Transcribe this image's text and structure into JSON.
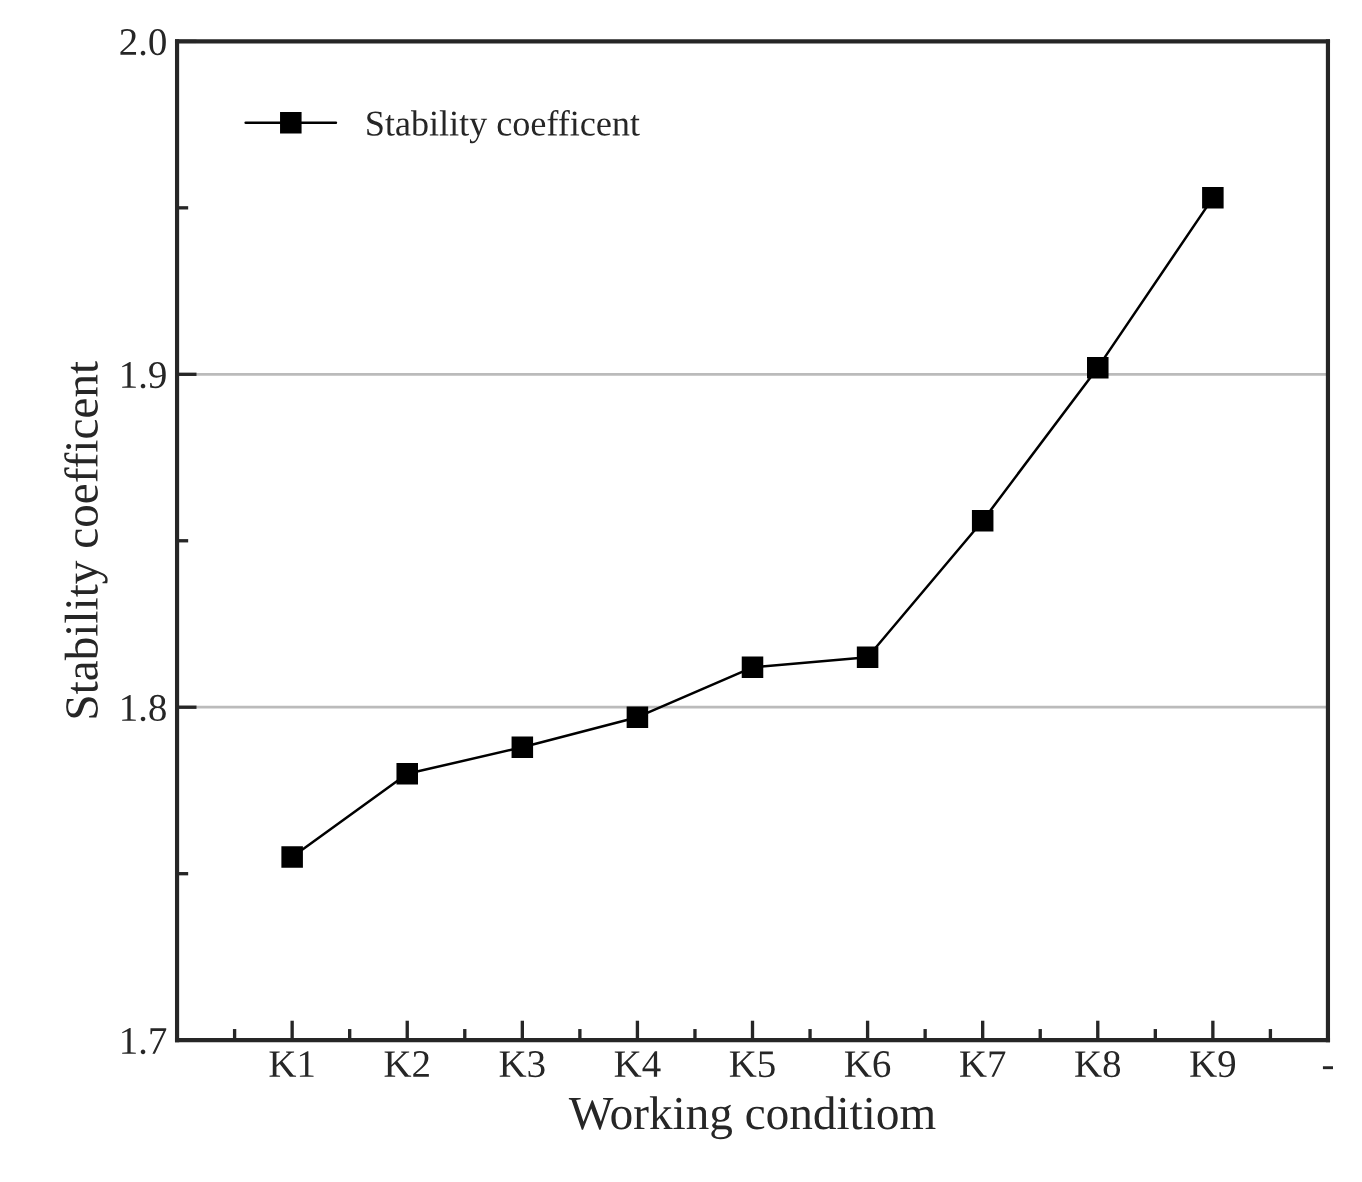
{
  "chart_data": {
    "type": "line",
    "xlabel": "Working conditiom",
    "ylabel": "Stability coefficent",
    "categories": [
      "K1",
      "K2",
      "K3",
      "K4",
      "K5",
      "K6",
      "K7",
      "K8",
      "K9",
      "-"
    ],
    "series": [
      {
        "name": "Stability coefficent",
        "color": "#000000",
        "values": [
          1.755,
          1.78,
          1.788,
          1.797,
          1.812,
          1.815,
          1.856,
          1.902,
          1.953,
          null
        ]
      }
    ],
    "ylim": [
      1.7,
      2.0
    ],
    "yticks": [
      1.7,
      1.8,
      1.9,
      {
        "value": 2,
        "label": "2.0"
      }
    ],
    "grid": "y",
    "legend": "top left",
    "marker": "square",
    "line_style": "solid"
  }
}
